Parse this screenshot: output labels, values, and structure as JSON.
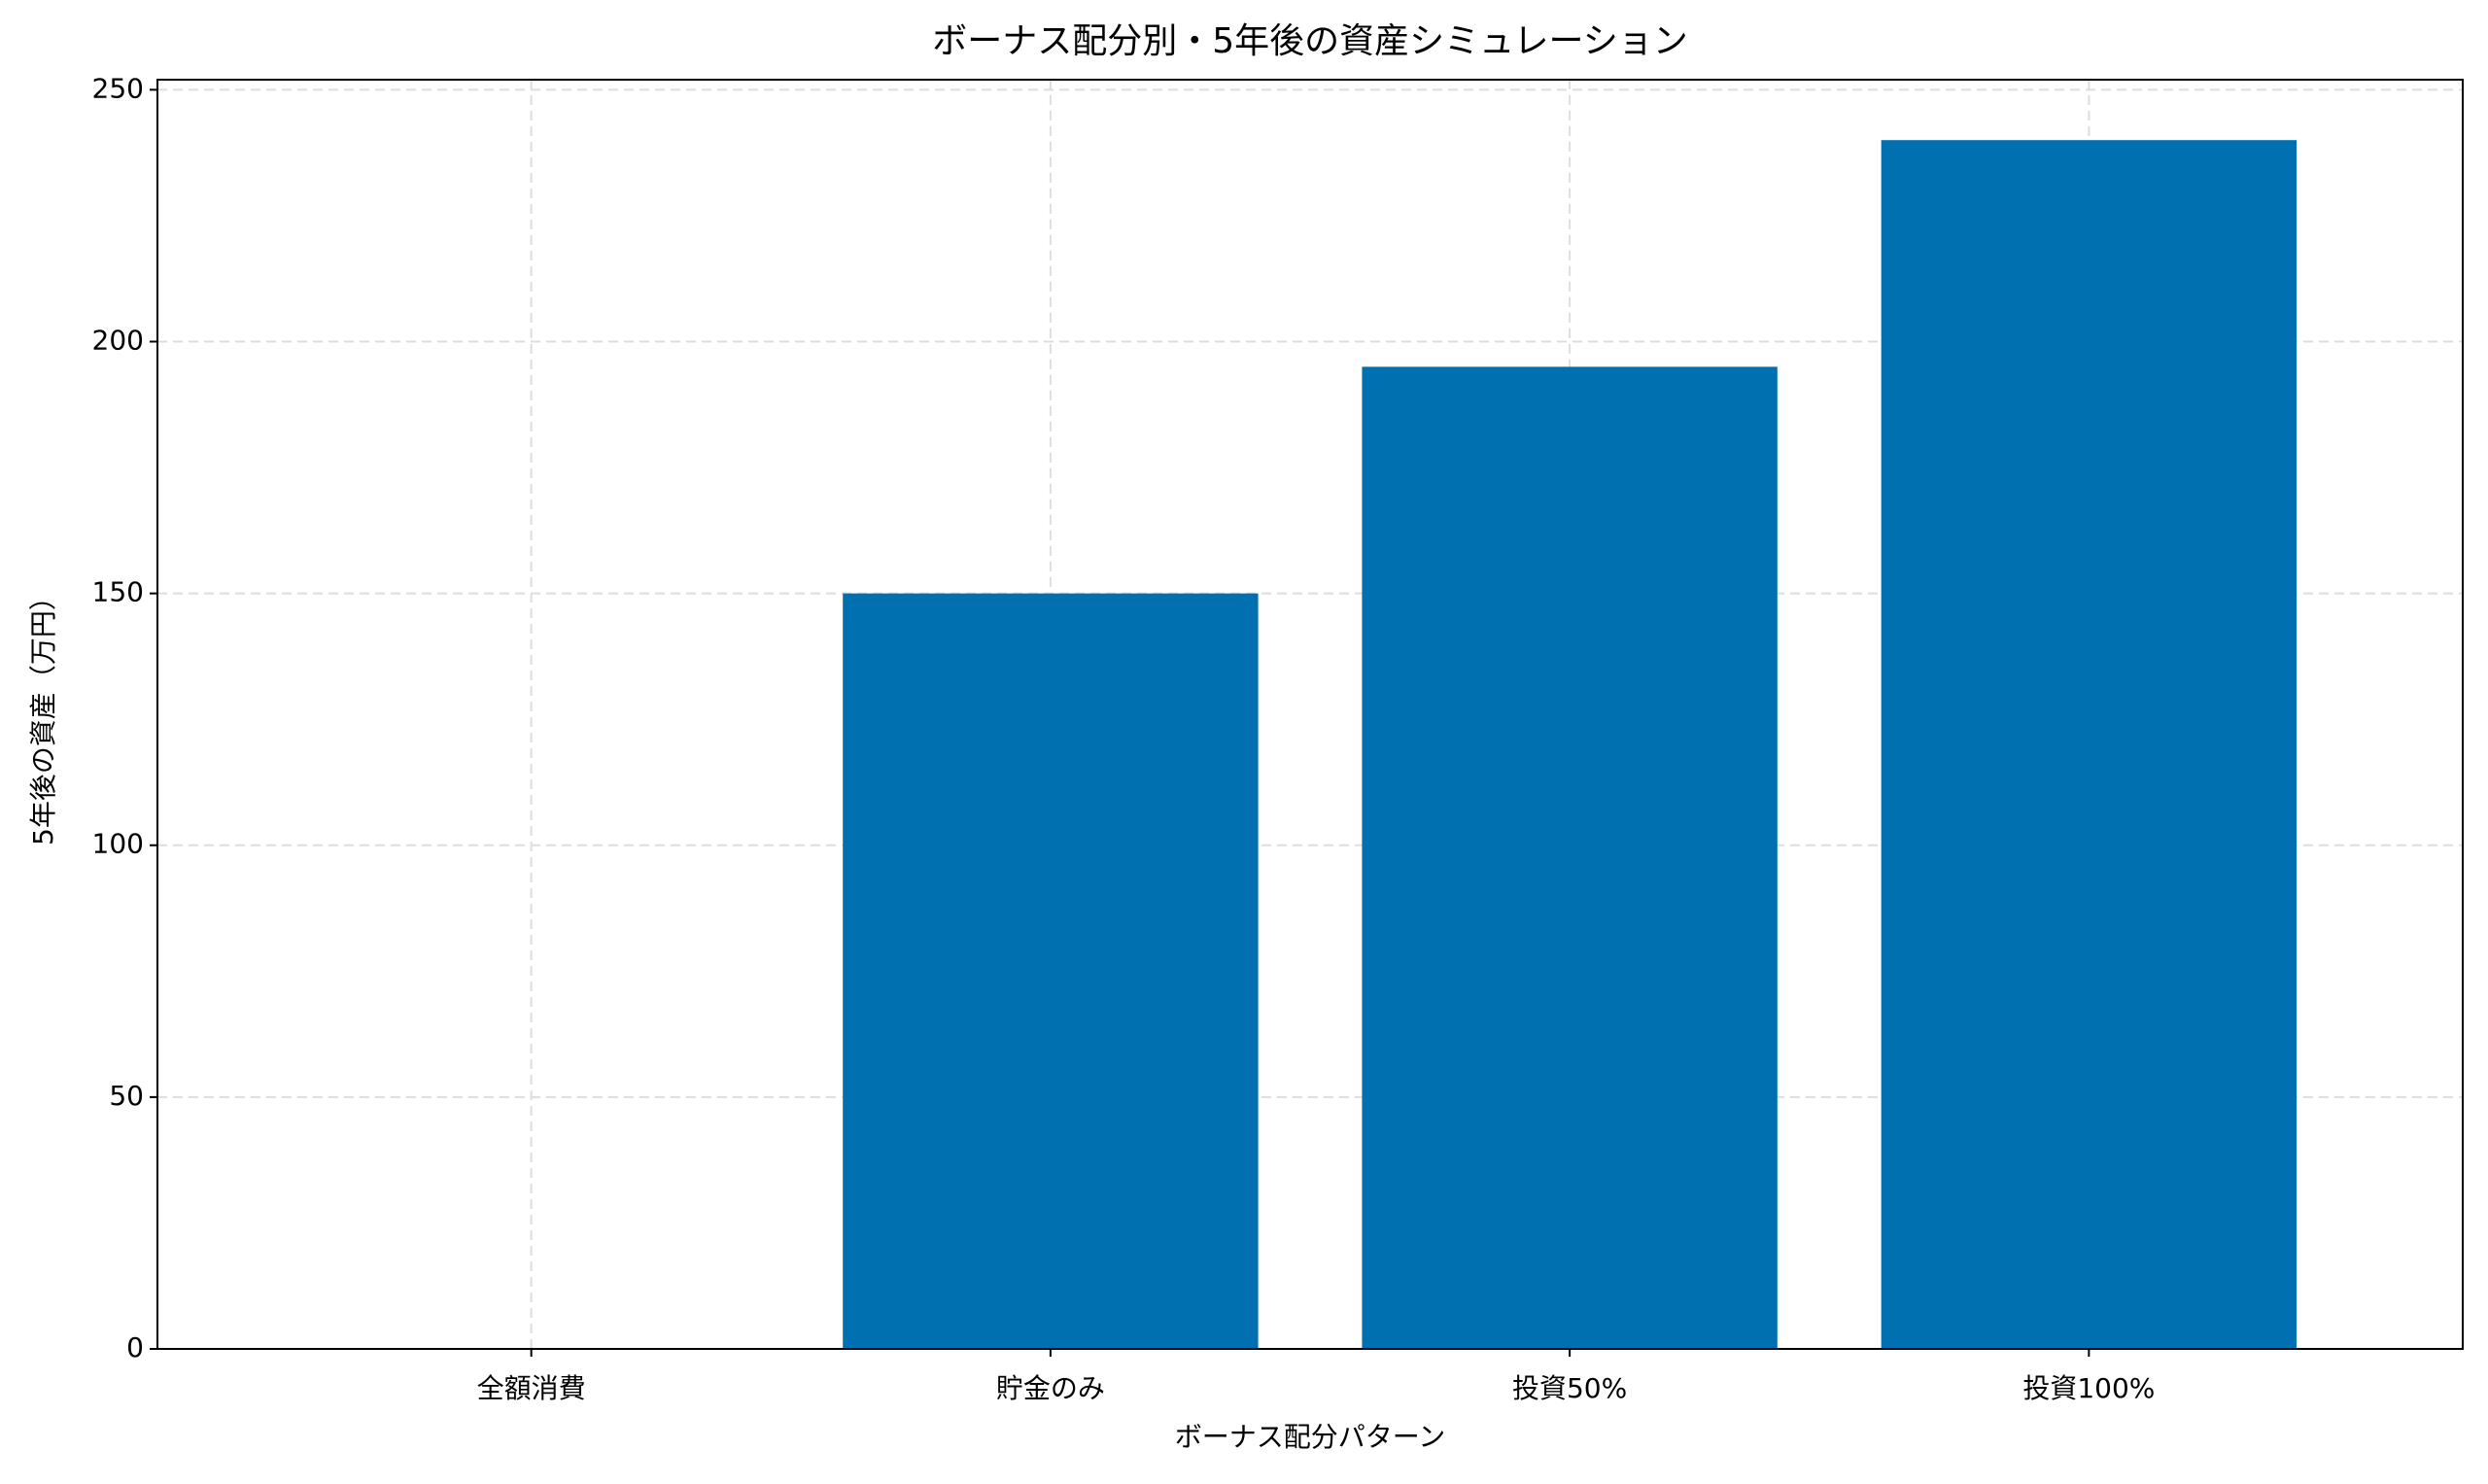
{
  "chart_data": {
    "type": "bar",
    "title": "ボーナス配分別・5年後の資産シミュレーション",
    "x_label": "ボーナス配分パターン",
    "y_label": "5年後の資産（万円）",
    "categories": [
      "全額消費",
      "貯金のみ",
      "投資50%",
      "投資100%"
    ],
    "values": [
      0,
      150,
      195,
      240
    ],
    "color": "#0070b0",
    "ylim": [
      0,
      252
    ],
    "yticks": [
      0,
      50,
      100,
      150,
      200,
      250
    ],
    "grid": true
  }
}
